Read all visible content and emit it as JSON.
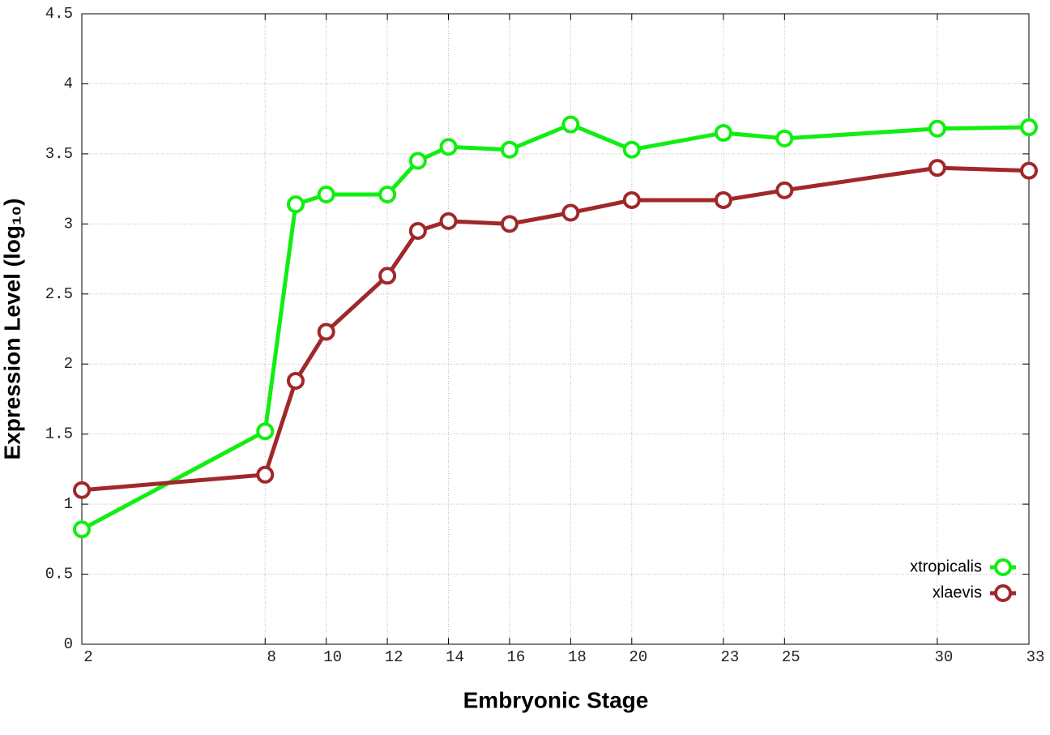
{
  "chart_data": {
    "type": "line",
    "xlabel": "Embryonic Stage",
    "ylabel": "Expression Level (log₁₀)",
    "x": [
      2,
      8,
      9,
      10,
      12,
      13,
      14,
      16,
      18,
      20,
      23,
      25,
      30,
      33
    ],
    "series": [
      {
        "name": "xtropicalis",
        "color": "#11ee11",
        "values": [
          0.82,
          1.52,
          3.14,
          3.21,
          3.21,
          3.45,
          3.55,
          3.53,
          3.71,
          3.53,
          3.65,
          3.61,
          3.68,
          3.69
        ]
      },
      {
        "name": "xlaevis",
        "color": "#a0282a",
        "values": [
          1.1,
          1.21,
          1.88,
          2.23,
          2.63,
          2.95,
          3.02,
          3.0,
          3.08,
          3.17,
          3.17,
          3.24,
          3.4,
          3.38
        ]
      }
    ],
    "xlim": [
      2,
      33
    ],
    "xticks": [
      2,
      8,
      10,
      12,
      14,
      16,
      18,
      20,
      23,
      25,
      30,
      33
    ],
    "ylim": [
      0,
      4.5
    ],
    "yticks": [
      0,
      0.5,
      1,
      1.5,
      2,
      2.5,
      3,
      3.5,
      4,
      4.5
    ],
    "grid": true,
    "legend": "lower right"
  }
}
